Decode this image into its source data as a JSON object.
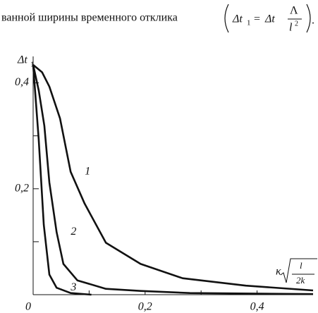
{
  "text_line": {
    "text": "ванной ширины временного отклика",
    "lhs": "Δt",
    "lhs_sub": "1",
    "eq": "=",
    "rhs": "Δt",
    "numerator": "Λ",
    "denominator": "l",
    "denominator_sup": "2",
    "end": "."
  },
  "chart_data": {
    "type": "line",
    "y_label": "Δt",
    "y_label_sub": "1",
    "x_label": "κ",
    "x_label_num": "l",
    "x_label_den": "2k",
    "color": "#111111",
    "xlim": [
      0,
      0.5
    ],
    "ylim": [
      0,
      0.45
    ],
    "xticks": [
      0,
      {
        "value": 0.2,
        "label": "0,2"
      },
      {
        "value": 0.4,
        "label": "0,4"
      }
    ],
    "xminorticks": [
      0.1,
      0.3
    ],
    "yticks": [
      {
        "value": 0.2,
        "label": "0,2"
      },
      {
        "value": 0.4,
        "label": "0,4"
      }
    ],
    "yminorticks": [
      0.1,
      0.3
    ],
    "series": [
      {
        "name": "1",
        "x": [
          0,
          0.016,
          0.029,
          0.048,
          0.067,
          0.092,
          0.13,
          0.192,
          0.267,
          0.38,
          0.5
        ],
        "values": [
          0.434,
          0.42,
          0.393,
          0.333,
          0.232,
          0.172,
          0.098,
          0.058,
          0.031,
          0.017,
          0.008
        ]
      },
      {
        "name": "2",
        "x": [
          0,
          0.01,
          0.02,
          0.029,
          0.042,
          0.054,
          0.079,
          0.13,
          0.192,
          0.28,
          0.5
        ],
        "values": [
          0.434,
          0.386,
          0.319,
          0.212,
          0.118,
          0.058,
          0.027,
          0.011,
          0.007,
          0.003,
          0.001
        ]
      },
      {
        "name": "3",
        "x": [
          0,
          0.01,
          0.019,
          0.029,
          0.042,
          0.067,
          0.104
        ],
        "values": [
          0.434,
          0.293,
          0.132,
          0.038,
          0.013,
          0.003,
          0
        ]
      }
    ]
  }
}
